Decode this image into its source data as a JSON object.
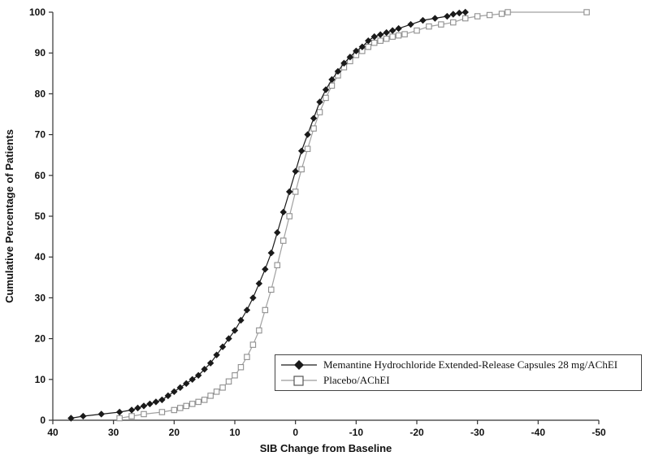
{
  "chart_data": {
    "type": "line",
    "title": "",
    "xlabel": "SIB Change from Baseline",
    "ylabel": "Cumulative Percentage of Patients",
    "x_axis_reversed": true,
    "xlim": [
      40,
      -50
    ],
    "ylim": [
      0,
      100
    ],
    "x_ticks": [
      40,
      30,
      20,
      10,
      0,
      -10,
      -20,
      -30,
      -40,
      -50
    ],
    "y_ticks": [
      0,
      10,
      20,
      30,
      40,
      50,
      60,
      70,
      80,
      90,
      100
    ],
    "grid": false,
    "legend_position": "inside-lower-right",
    "axis_color": "#333333",
    "series": [
      {
        "name": "Memantine Hydrochloride Extended-Release Capsules 28 mg/AChEI",
        "marker": "filled-diamond",
        "color": "#1a1a1a",
        "points": [
          [
            37,
            0.5
          ],
          [
            35,
            1
          ],
          [
            32,
            1.5
          ],
          [
            29,
            2
          ],
          [
            27,
            2.5
          ],
          [
            26,
            3
          ],
          [
            25,
            3.5
          ],
          [
            24,
            4
          ],
          [
            23,
            4.5
          ],
          [
            22,
            5
          ],
          [
            21,
            6
          ],
          [
            20,
            7
          ],
          [
            19,
            8
          ],
          [
            18,
            9
          ],
          [
            17,
            10
          ],
          [
            16,
            11
          ],
          [
            15,
            12.5
          ],
          [
            14,
            14
          ],
          [
            13,
            16
          ],
          [
            12,
            18
          ],
          [
            11,
            20
          ],
          [
            10,
            22
          ],
          [
            9,
            24.5
          ],
          [
            8,
            27
          ],
          [
            7,
            30
          ],
          [
            6,
            33.5
          ],
          [
            5,
            37
          ],
          [
            4,
            41
          ],
          [
            3,
            46
          ],
          [
            2,
            51
          ],
          [
            1,
            56
          ],
          [
            0,
            61
          ],
          [
            -1,
            66
          ],
          [
            -2,
            70
          ],
          [
            -3,
            74
          ],
          [
            -4,
            78
          ],
          [
            -5,
            81
          ],
          [
            -6,
            83.5
          ],
          [
            -7,
            85.5
          ],
          [
            -8,
            87.5
          ],
          [
            -9,
            89
          ],
          [
            -10,
            90.5
          ],
          [
            -11,
            91.5
          ],
          [
            -12,
            93
          ],
          [
            -13,
            94
          ],
          [
            -14,
            94.5
          ],
          [
            -15,
            95
          ],
          [
            -16,
            95.5
          ],
          [
            -17,
            96
          ],
          [
            -19,
            97
          ],
          [
            -21,
            98
          ],
          [
            -23,
            98.5
          ],
          [
            -25,
            99
          ],
          [
            -26,
            99.5
          ],
          [
            -27,
            99.8
          ],
          [
            -28,
            100
          ]
        ]
      },
      {
        "name": "Placebo/AChEI",
        "marker": "open-square",
        "color": "#a0a0a0",
        "points": [
          [
            29,
            0.5
          ],
          [
            27,
            1
          ],
          [
            25,
            1.5
          ],
          [
            22,
            2
          ],
          [
            20,
            2.5
          ],
          [
            19,
            3
          ],
          [
            18,
            3.5
          ],
          [
            17,
            4
          ],
          [
            16,
            4.5
          ],
          [
            15,
            5
          ],
          [
            14,
            6
          ],
          [
            13,
            7
          ],
          [
            12,
            8
          ],
          [
            11,
            9.5
          ],
          [
            10,
            11
          ],
          [
            9,
            13
          ],
          [
            8,
            15.5
          ],
          [
            7,
            18.5
          ],
          [
            6,
            22
          ],
          [
            5,
            27
          ],
          [
            4,
            32
          ],
          [
            3,
            38
          ],
          [
            2,
            44
          ],
          [
            1,
            50
          ],
          [
            0,
            56
          ],
          [
            -1,
            61.5
          ],
          [
            -2,
            66.5
          ],
          [
            -3,
            71.5
          ],
          [
            -4,
            75.5
          ],
          [
            -5,
            79
          ],
          [
            -6,
            82
          ],
          [
            -7,
            84.5
          ],
          [
            -8,
            86.5
          ],
          [
            -9,
            88
          ],
          [
            -10,
            89.5
          ],
          [
            -11,
            90.5
          ],
          [
            -12,
            91.5
          ],
          [
            -13,
            92.5
          ],
          [
            -14,
            93
          ],
          [
            -15,
            93.5
          ],
          [
            -16,
            94
          ],
          [
            -17,
            94.3
          ],
          [
            -18,
            94.6
          ],
          [
            -20,
            95.5
          ],
          [
            -22,
            96.5
          ],
          [
            -24,
            97
          ],
          [
            -26,
            97.5
          ],
          [
            -28,
            98.5
          ],
          [
            -30,
            99
          ],
          [
            -32,
            99.3
          ],
          [
            -34,
            99.6
          ],
          [
            -35,
            100
          ],
          [
            -48,
            100
          ]
        ]
      }
    ]
  }
}
